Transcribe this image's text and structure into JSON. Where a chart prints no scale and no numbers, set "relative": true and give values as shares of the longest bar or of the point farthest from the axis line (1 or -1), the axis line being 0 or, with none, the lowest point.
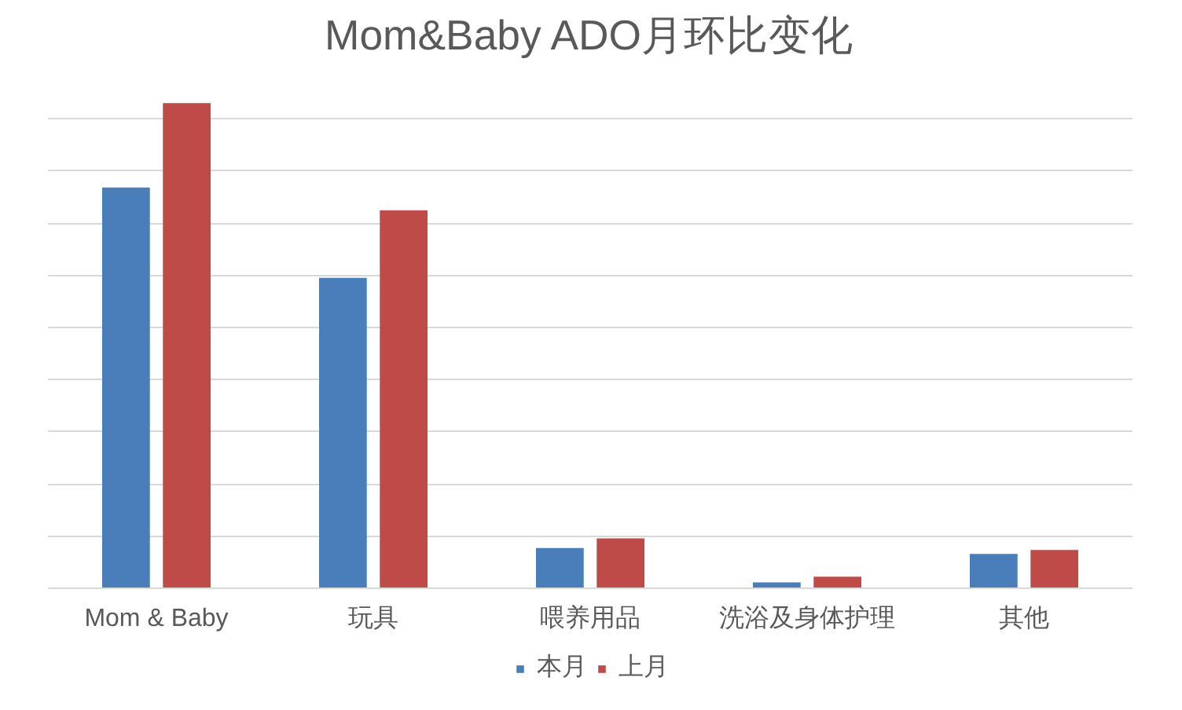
{
  "chart_data": {
    "type": "bar",
    "title": "Mom&Baby ADO月环比变化",
    "relative": true,
    "categories": [
      "Mom & Baby",
      "玩具",
      "喂养用品",
      "洗浴及身体护理",
      "其他"
    ],
    "series": [
      {
        "name": "本月",
        "color": "#4a7ebb",
        "values": [
          0.826,
          0.64,
          0.083,
          0.012,
          0.071
        ]
      },
      {
        "name": "上月",
        "color": "#be4b48",
        "values": [
          1,
          0.779,
          0.103,
          0.024,
          0.079
        ]
      }
    ],
    "grid": "y",
    "legend": "bottom"
  }
}
